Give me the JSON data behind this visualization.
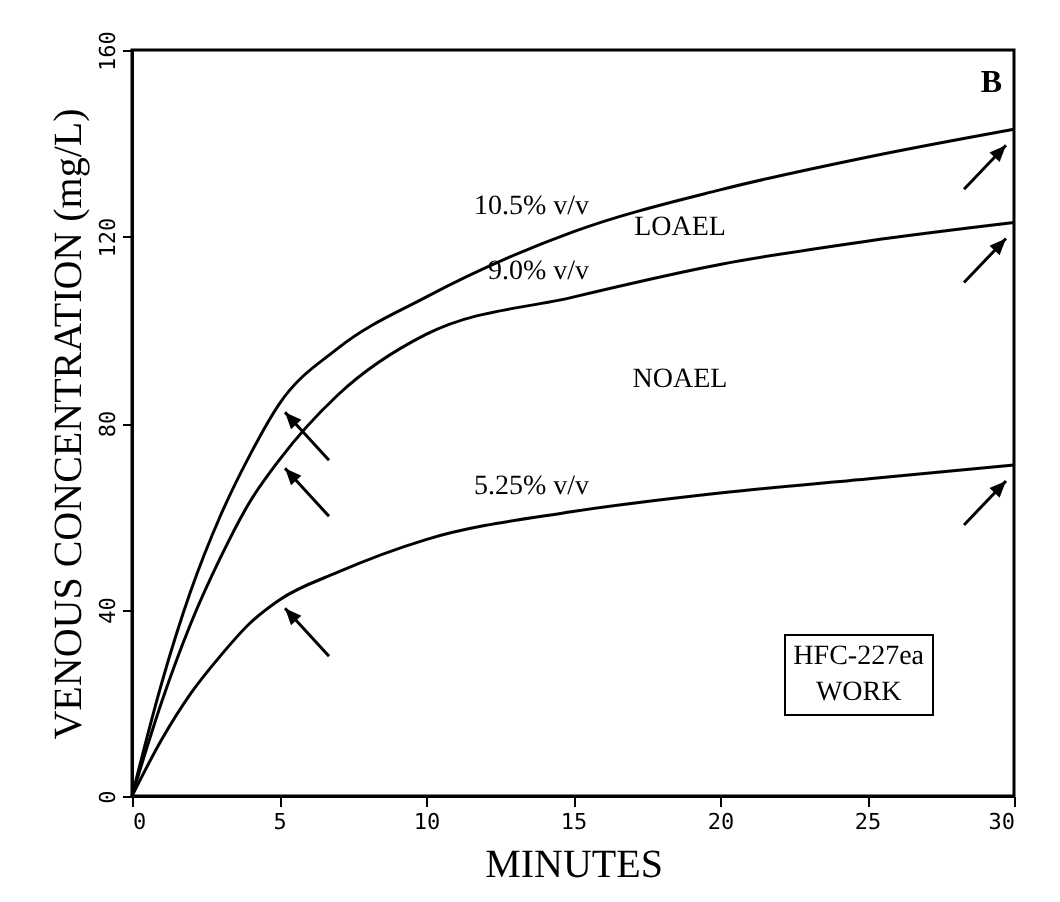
{
  "chart_data": {
    "type": "line",
    "title": "B",
    "xlabel": "MINUTES",
    "ylabel": "VENOUS CONCENTRATION (mg/L)",
    "x": [
      0,
      1,
      2,
      3,
      4,
      5,
      7,
      10,
      15,
      20,
      25,
      30
    ],
    "series": [
      {
        "name": "10.5% v/v",
        "color": "#000000",
        "values": [
          0,
          24,
          44,
          60,
          73,
          84,
          96,
          107,
          121,
          130,
          137,
          143
        ]
      },
      {
        "name": "9.0% v/v",
        "color": "#000000",
        "values": [
          0,
          20,
          37,
          51,
          63,
          72,
          86,
          99,
          107,
          114,
          119,
          123
        ]
      },
      {
        "name": "5.25% v/v",
        "color": "#000000",
        "values": [
          0,
          12,
          22,
          30,
          37,
          42,
          48,
          55,
          61,
          65,
          68,
          71
        ]
      }
    ],
    "annotations": [
      "LOAEL",
      "NOAEL",
      "HFC-227ea\nWORK"
    ],
    "xlim": [
      0,
      30
    ],
    "xticks": [
      0,
      5,
      10,
      15,
      20,
      25,
      30
    ],
    "ylim": [
      0,
      160
    ],
    "yticks": [
      0,
      40,
      80,
      120,
      160
    ],
    "grid": false,
    "legend": false,
    "marker": "none",
    "line_style": "solid"
  }
}
